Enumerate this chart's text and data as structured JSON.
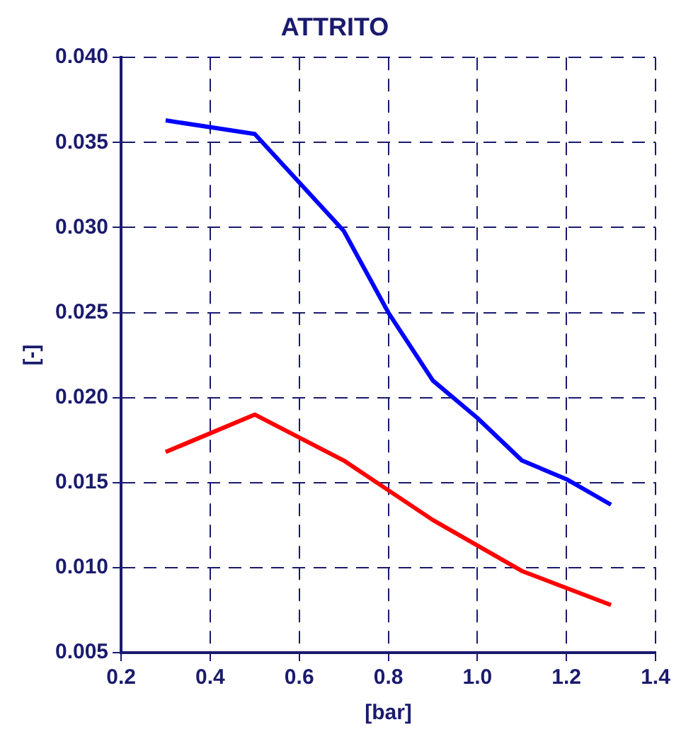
{
  "chart_data": {
    "type": "line",
    "title": "ATTRITO",
    "xlabel": "[bar]",
    "ylabel": "[-]",
    "xlim": [
      0.2,
      1.4
    ],
    "xticks": [
      {
        "value": 0.2,
        "label": "0.2"
      },
      {
        "value": 0.4,
        "label": "0.4"
      },
      {
        "value": 0.6,
        "label": "0.6"
      },
      {
        "value": 0.8,
        "label": "0.8"
      },
      {
        "value": 1.0,
        "label": "1.0"
      },
      {
        "value": 1.2,
        "label": "1.2"
      },
      {
        "value": 1.4,
        "label": "1.4"
      }
    ],
    "ylim": [
      0.005,
      0.04
    ],
    "yticks": [
      {
        "value": 0.005,
        "label": "0.005"
      },
      {
        "value": 0.01,
        "label": "0.010"
      },
      {
        "value": 0.015,
        "label": "0.015"
      },
      {
        "value": 0.02,
        "label": "0.020"
      },
      {
        "value": 0.025,
        "label": "0.025"
      },
      {
        "value": 0.03,
        "label": "0.030"
      },
      {
        "value": 0.035,
        "label": "0.035"
      },
      {
        "value": 0.04,
        "label": "0.040"
      }
    ],
    "grid": true,
    "legend": false,
    "marker": "none",
    "line_style": "solid",
    "series": [
      {
        "color": "#0000ff",
        "x": [
          0.3,
          0.5,
          0.7,
          0.8,
          0.9,
          1.0,
          1.1,
          1.2,
          1.3
        ],
        "values": [
          0.0363,
          0.0355,
          0.0298,
          0.025,
          0.021,
          0.0188,
          0.0163,
          0.0152,
          0.0137
        ]
      },
      {
        "color": "#ff0000",
        "x": [
          0.3,
          0.5,
          0.7,
          0.9,
          1.1,
          1.3
        ],
        "values": [
          0.0168,
          0.019,
          0.0163,
          0.0128,
          0.0098,
          0.0078
        ]
      }
    ]
  }
}
